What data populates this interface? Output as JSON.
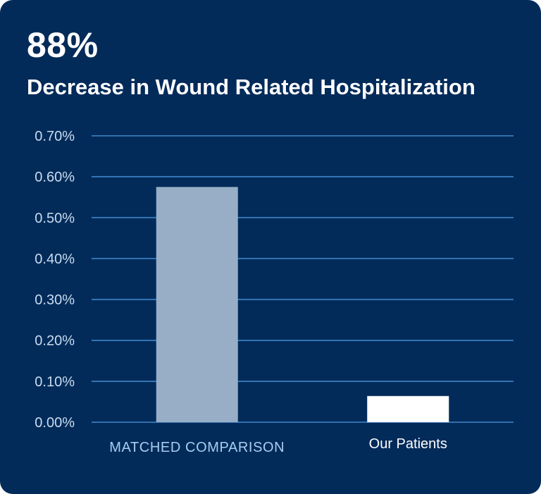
{
  "headline": {
    "value": "88%"
  },
  "chart_data": {
    "type": "bar",
    "title": "Decrease in Wound Related Hospitalization",
    "categories": [
      "MATCHED COMPARISON",
      "Our Patients"
    ],
    "values": [
      0.575,
      0.064
    ],
    "ylim": [
      0,
      0.7
    ],
    "yticks": [
      0,
      0.1,
      0.2,
      0.3,
      0.4,
      0.5,
      0.6,
      0.7
    ],
    "ytick_labels": [
      "0.00%",
      "0.10%",
      "0.20%",
      "0.30%",
      "0.40%",
      "0.50%",
      "0.60%",
      "0.70%"
    ],
    "xlabel": "",
    "ylabel": "",
    "grid": true,
    "colors": {
      "background": "#022b5a",
      "gridline": "#3f86c9",
      "bars": [
        "#97aec6",
        "#ffffff"
      ],
      "category_labels": [
        "#a9cdf0",
        "#ffffff"
      ]
    }
  }
}
